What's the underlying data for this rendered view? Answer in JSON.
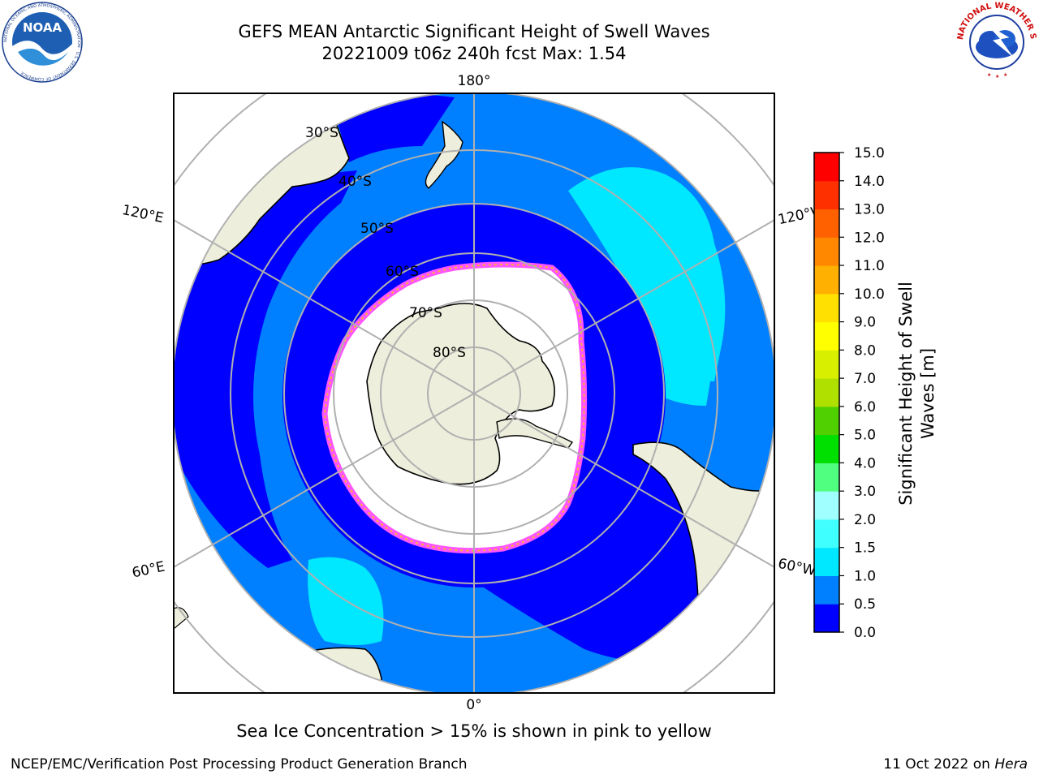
{
  "title": {
    "line1": "GEFS MEAN Antarctic Significant Height of Swell Waves",
    "line2": "20221009 t06z 240h fcst   Max: 1.54"
  },
  "logos": {
    "left": "NOAA",
    "left_ring_text": "NATIONAL OCEANIC AND ATMOSPHERIC ADMINISTRATION · U.S. DEPARTMENT OF COMMERCE",
    "right_ring_text": "NATIONAL WEATHER SERVICE"
  },
  "map": {
    "projection": "south-polar-stereographic",
    "longitude_labels": {
      "top": "180°",
      "bottom": "0°",
      "left_upper": "120°E",
      "left_lower": "60°E",
      "right_upper": "120°W",
      "right_lower": "60°W"
    },
    "latitude_labels": [
      "30°S",
      "40°S",
      "50°S",
      "60°S",
      "70°S",
      "80°S"
    ],
    "colors": {
      "land": "#eeeedc",
      "ice_free_ocean_white": "#ffffff",
      "grid": "#b0b0b0",
      "coast": "#000000",
      "sea_ice_edge": [
        "#ff55ff",
        "#ffb030"
      ]
    }
  },
  "colorbar": {
    "label": "Significant Height of Swell Waves [m]",
    "label_line1": "Significant Height of Swell",
    "label_line2": "Waves [m]",
    "ticks": [
      "0.0",
      "0.5",
      "1.0",
      "1.5",
      "2.0",
      "3.0",
      "4.0",
      "5.0",
      "6.0",
      "7.0",
      "8.0",
      "9.0",
      "10.0",
      "11.0",
      "12.0",
      "13.0",
      "14.0",
      "15.0"
    ],
    "colors": [
      "#0000ff",
      "#0080ff",
      "#00e8ff",
      "#40ffff",
      "#a0ffff",
      "#50ff80",
      "#00e000",
      "#50d000",
      "#b0e000",
      "#d8f000",
      "#ffff00",
      "#ffe000",
      "#ffb000",
      "#ff8800",
      "#ff6000",
      "#ff3000",
      "#ff0000"
    ]
  },
  "sea_ice_note": "Sea Ice Concentration > 15% is shown in pink to yellow",
  "footer": {
    "left": "NCEP/EMC/Verification Post Processing Product Generation Branch",
    "date": "11 Oct 2022 on ",
    "host": "Hera"
  }
}
